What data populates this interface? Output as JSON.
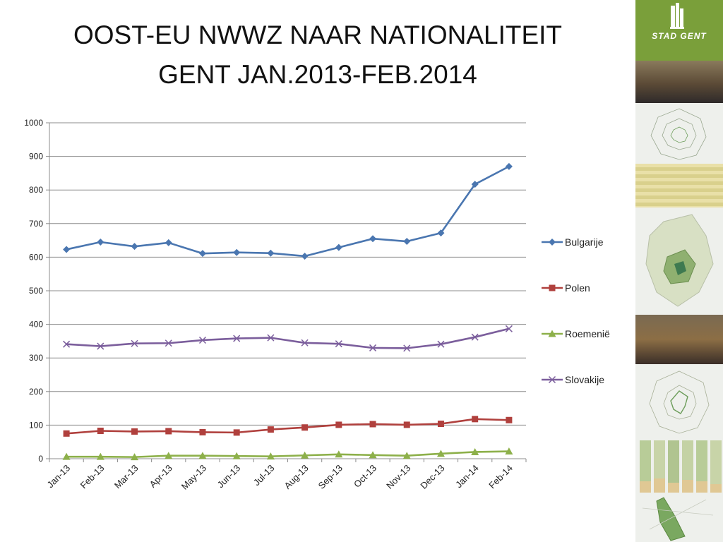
{
  "header": {
    "title_line1": "OOST-EU NWWZ NAAR NATIONALITEIT",
    "title_line2": "GENT JAN.2013-FEB.2014"
  },
  "brand": {
    "logo_text": "STAD GENT",
    "color": "#7a9f3a"
  },
  "chart_data": {
    "type": "line",
    "categories": [
      "Jan-13",
      "Feb-13",
      "Mar-13",
      "Apr-13",
      "May-13",
      "Jun-13",
      "Jul-13",
      "Aug-13",
      "Sep-13",
      "Oct-13",
      "Nov-13",
      "Dec-13",
      "Jan-14",
      "Feb-14"
    ],
    "ylim": [
      0,
      1000
    ],
    "yticks": [
      0,
      100,
      200,
      300,
      400,
      500,
      600,
      700,
      800,
      900,
      1000
    ],
    "grid": true,
    "legend_position": "right",
    "series": [
      {
        "name": "Bulgarije",
        "color": "#4a76b0",
        "marker": "diamond",
        "values": [
          623,
          645,
          632,
          643,
          611,
          614,
          612,
          603,
          629,
          655,
          647,
          672,
          817,
          870
        ]
      },
      {
        "name": "Polen",
        "color": "#b0403d",
        "marker": "square",
        "values": [
          75,
          83,
          81,
          82,
          79,
          78,
          87,
          93,
          101,
          103,
          101,
          104,
          118,
          115
        ]
      },
      {
        "name": "Roemenië",
        "color": "#8db04a",
        "marker": "triangle",
        "values": [
          6,
          6,
          5,
          9,
          9,
          8,
          7,
          10,
          13,
          11,
          9,
          15,
          20,
          22
        ]
      },
      {
        "name": "Slovakije",
        "color": "#7b5e9c",
        "marker": "x",
        "values": [
          341,
          335,
          343,
          344,
          353,
          358,
          360,
          345,
          342,
          330,
          329,
          341,
          362,
          387
        ]
      }
    ]
  }
}
